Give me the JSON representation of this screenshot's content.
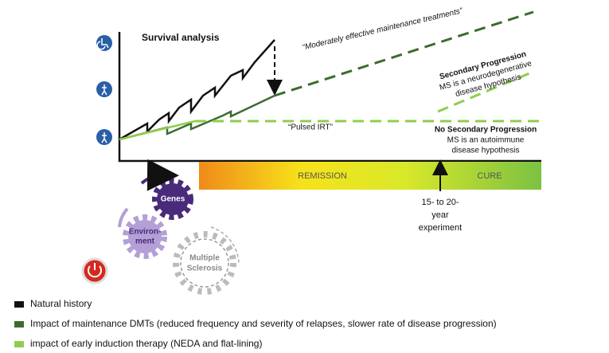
{
  "diagram": {
    "title": "Survival analysis",
    "annotations": {
      "maintenance": "“Moderately effective maintenance treatments”",
      "pulsed": "“Pulsed IRT”",
      "secondary_title": "Secondary Progression",
      "secondary_lines": [
        "MS is a neurodegenerative",
        "disease hypothesis"
      ],
      "no_secondary_title": "No Secondary Progression",
      "no_secondary_lines": [
        "MS is an autoimmune",
        "disease hypothesis"
      ],
      "experiment_lines": [
        "15- to 20-",
        "year",
        "experiment"
      ]
    },
    "bar": {
      "remission": "REMISSION",
      "cure": "CURE"
    },
    "gears": {
      "genes": "Genes",
      "environment": [
        "Environ-",
        "ment"
      ],
      "ms": [
        "Multiple",
        "Sclerosis"
      ]
    },
    "legend": [
      {
        "label": "Natural history",
        "color": "#111111"
      },
      {
        "label": "Impact of maintenance DMTs (reduced frequency and severity of relapses, slower rate of disease progression)",
        "color": "#3d6b2f"
      },
      {
        "label": "impact of early induction therapy (NEDA and flat-lining)",
        "color": "#8fcd4e"
      }
    ]
  }
}
